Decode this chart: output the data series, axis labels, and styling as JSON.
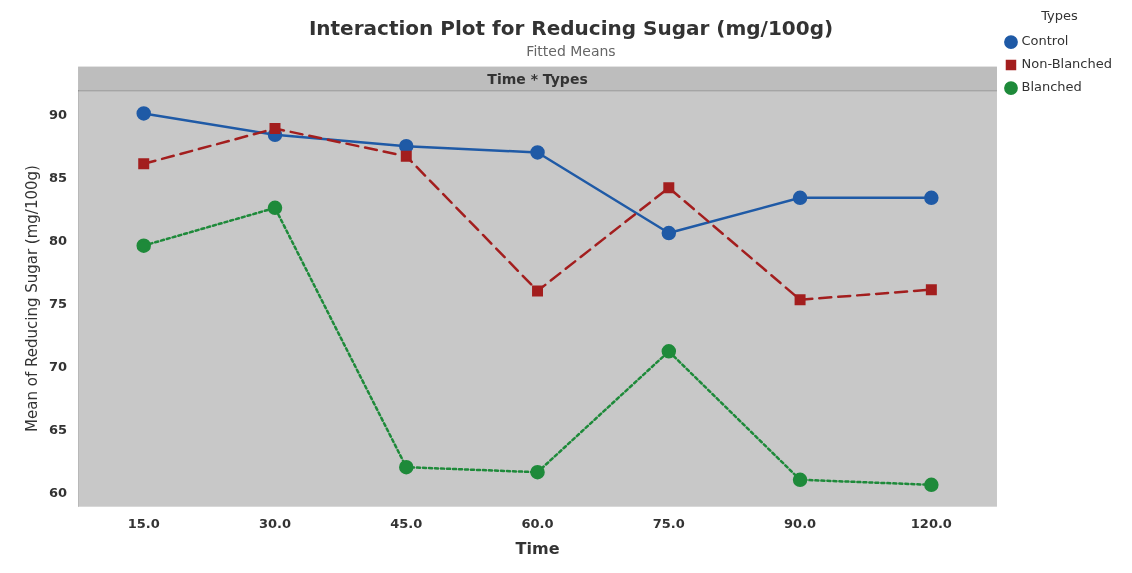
{
  "chart_data": {
    "type": "line",
    "title": "Interaction Plot for Reducing Sugar (mg/100g)",
    "subtitle": "Fitted Means",
    "annotations": [
      "Time * Types"
    ],
    "xlabel": "Time",
    "ylabel": "Mean of Reducing Sugar (mg/100g)",
    "legend_title": "Types",
    "legend": "right",
    "grid": false,
    "categories": [
      "15.0",
      "30.0",
      "45.0",
      "60.0",
      "75.0",
      "90.0",
      "120.0"
    ],
    "ylim": [
      59,
      92
    ],
    "yticks": [
      60,
      65,
      70,
      75,
      80,
      85,
      90
    ],
    "series": [
      {
        "name": "Control",
        "color": "#1f5aa6",
        "marker": "circle",
        "line_style": "solid",
        "values": [
          90.2,
          88.5,
          87.6,
          87.1,
          80.7,
          83.5,
          83.5
        ]
      },
      {
        "name": "Non-Blanched",
        "color": "#a31e1e",
        "marker": "square",
        "line_style": "dashed",
        "values": [
          86.2,
          89.0,
          86.8,
          76.1,
          84.3,
          75.4,
          76.2
        ]
      },
      {
        "name": "Blanched",
        "color": "#1e8a3a",
        "marker": "circle",
        "line_style": "dotted",
        "values": [
          79.7,
          82.7,
          62.1,
          61.7,
          71.3,
          61.1,
          60.7
        ]
      }
    ]
  }
}
